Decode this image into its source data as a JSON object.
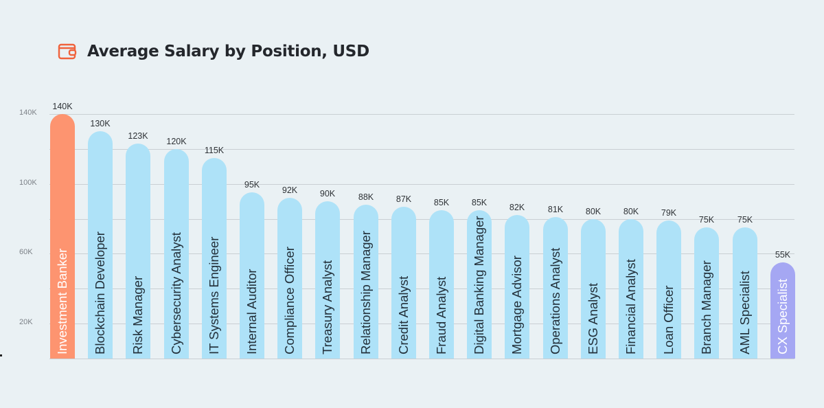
{
  "header": {
    "icon": "wallet-icon",
    "title": "Average Salary by Position, USD"
  },
  "colors": {
    "background": "#eaf1f4",
    "highlight_top": "#fd9470",
    "default_bar": "#aee2f8",
    "highlight_bottom": "#a5a7f3",
    "gridline": "#c9cfd3",
    "icon": "#f0623c"
  },
  "chart_data": {
    "type": "bar",
    "title": "Average Salary by Position, USD",
    "xlabel": "",
    "ylabel": "",
    "ylim": [
      0,
      140000
    ],
    "y_ticks_labeled": [
      "20K",
      "60K",
      "100K",
      "140K"
    ],
    "gridlines_at": [
      20000,
      40000,
      60000,
      80000,
      100000,
      120000,
      140000
    ],
    "grid": true,
    "legend": "none",
    "categories": [
      "Investment Banker",
      "Blockchain Developer",
      "Risk Manager",
      "Cybersecurity Analyst",
      "IT Systems Engineer",
      "Internal Auditor",
      "Compliance Officer",
      "Treasury Analyst",
      "Relationship Manager",
      "Credit Analyst",
      "Fraud Analyst",
      "Digital Banking Manager",
      "Mortgage Advisor",
      "Operations Analyst",
      "ESG Analyst",
      "Financial Analyst",
      "Loan Officer",
      "Branch Manager",
      "AML Specialist",
      "CX Specialist"
    ],
    "values": [
      140000,
      130000,
      123000,
      120000,
      115000,
      95000,
      92000,
      90000,
      88000,
      87000,
      85000,
      85000,
      82000,
      81000,
      80000,
      80000,
      79000,
      75000,
      75000,
      55000
    ],
    "value_labels": [
      "140K",
      "130K",
      "123K",
      "120K",
      "115K",
      "95K",
      "92K",
      "90K",
      "88K",
      "87K",
      "85K",
      "85K",
      "82K",
      "81K",
      "80K",
      "80K",
      "79K",
      "75K",
      "75K",
      "55K"
    ],
    "bar_colors": [
      "#fd9470",
      "#aee2f8",
      "#aee2f8",
      "#aee2f8",
      "#aee2f8",
      "#aee2f8",
      "#aee2f8",
      "#aee2f8",
      "#aee2f8",
      "#aee2f8",
      "#aee2f8",
      "#aee2f8",
      "#aee2f8",
      "#aee2f8",
      "#aee2f8",
      "#aee2f8",
      "#aee2f8",
      "#aee2f8",
      "#aee2f8",
      "#a5a7f3"
    ]
  }
}
